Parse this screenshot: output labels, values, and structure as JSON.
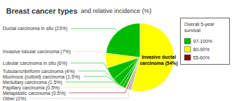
{
  "chart_data": {
    "type": "pie",
    "title": "Breast cancer types",
    "subtitle": "and relative incidence (%)",
    "categories": [
      "Invasive ductal\ncarcinoma (54%)",
      "Other (2%)",
      "Metaplastic carcinoma (0.5%)",
      "Papillary carcinoma (0.5%)",
      "Medullary carcinoma (1.5%)",
      "Mucinous (colloid) carcinoma (1.5%)",
      "Tubular/cribriform carcinoma (4%)",
      "Lobular carcinoma in situ (6%)",
      "Invasive lobular carcinoma (7%)",
      "Ductal carcinoma in situ (23%)"
    ],
    "values": [
      54,
      2,
      0.5,
      0.5,
      1.5,
      1.5,
      4,
      6,
      7,
      23
    ],
    "colors": [
      "#ffff00",
      "#c0c0c0",
      "#8b0000",
      "#ffff00",
      "#00bb00",
      "#00bb00",
      "#00bb00",
      "#00bb00",
      "#ffff00",
      "#00bb00"
    ],
    "legend": "upper right",
    "legend_title": "Overall 5-year\nsurvival",
    "legend_items": [
      {
        "label": "97-100%",
        "color": "#00bb00"
      },
      {
        "label": "80-90%",
        "color": "#ffff00"
      },
      {
        "label": "55-60%",
        "color": "#8b0000"
      }
    ]
  }
}
